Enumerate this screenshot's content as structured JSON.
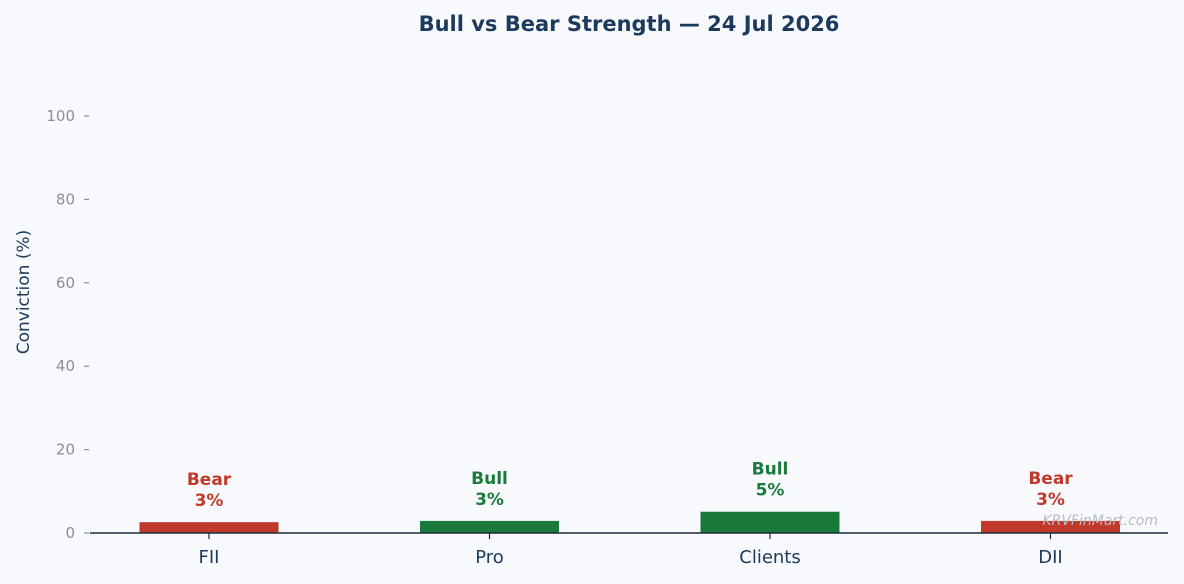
{
  "colors": {
    "bull": "#1a7a3c",
    "bear": "#c0392b",
    "title": "#1b3a5c",
    "axis": "#1b2b3c",
    "tick": "#8a8f98",
    "background": "#f7f9fc"
  },
  "watermark": "KRVFinMart.com",
  "chart_data": {
    "type": "bar",
    "title": "Bull vs Bear Strength — 24 Jul 2026",
    "xlabel": "",
    "ylabel": "Conviction (%)",
    "ylim": [
      0,
      110
    ],
    "yticks": [
      0,
      20,
      40,
      60,
      80,
      100
    ],
    "grid": false,
    "categories": [
      "FII",
      "Pro",
      "Clients",
      "DII"
    ],
    "values": [
      2.6,
      2.9,
      5.1,
      2.9
    ],
    "sentiments": [
      "Bear",
      "Bull",
      "Bull",
      "Bear"
    ],
    "value_labels": [
      "3%",
      "3%",
      "5%",
      "3%"
    ]
  }
}
